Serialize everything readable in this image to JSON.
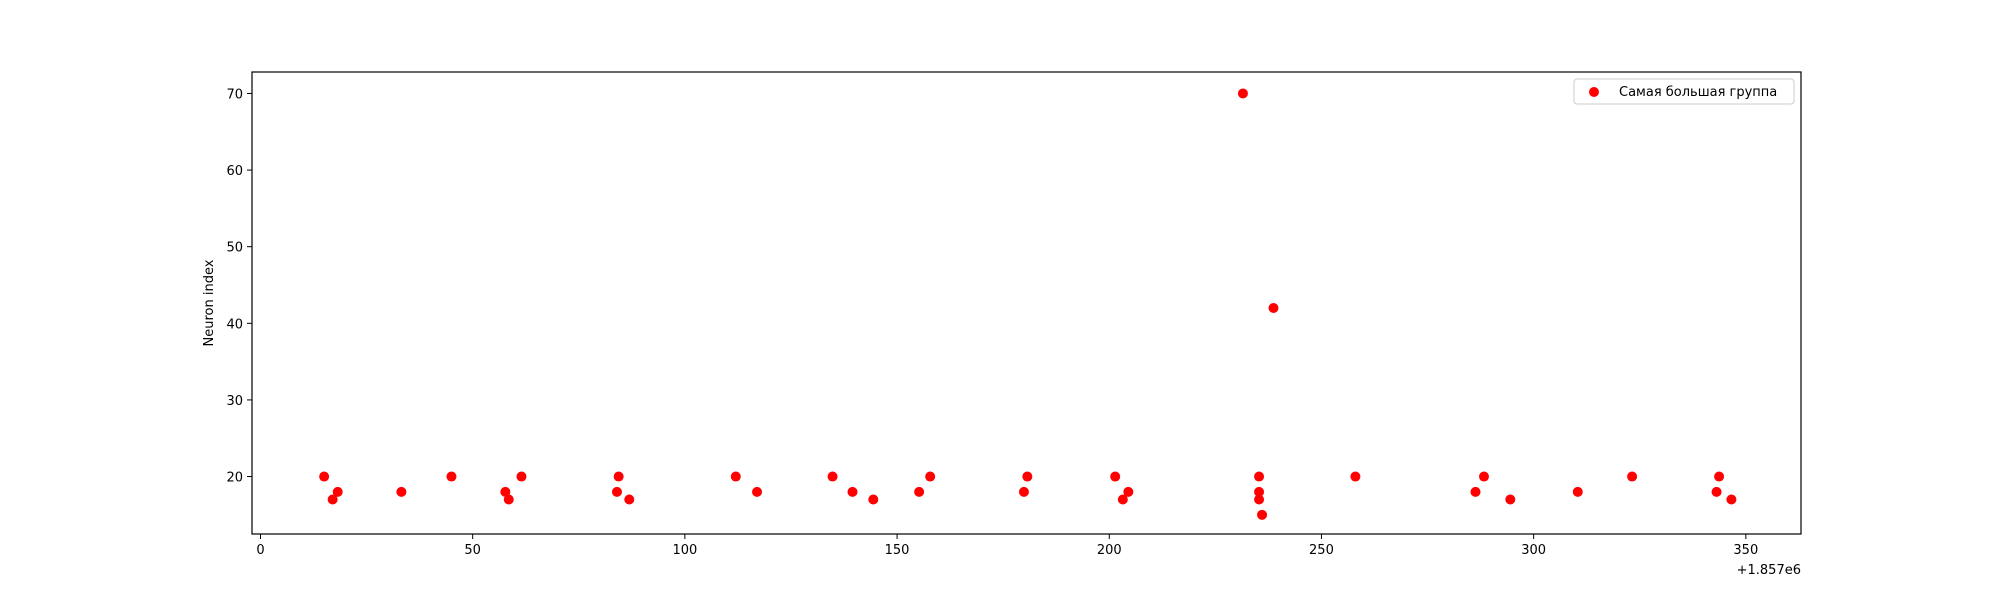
{
  "chart_data": {
    "type": "scatter",
    "title": "",
    "xlabel": "",
    "ylabel": "Neuron index",
    "x_offset_label": "+1.857e6",
    "xlim": [
      -2,
      363
    ],
    "ylim": [
      12.5,
      72.8
    ],
    "x_ticks": [
      0,
      50,
      100,
      150,
      200,
      250,
      300,
      350
    ],
    "x_tick_labels": [
      "0",
      "50",
      "100",
      "150",
      "200",
      "250",
      "300",
      "350"
    ],
    "y_ticks": [
      20,
      30,
      40,
      50,
      60,
      70
    ],
    "y_tick_labels": [
      "20",
      "30",
      "40",
      "50",
      "60",
      "70"
    ],
    "grid": false,
    "legend_position": "top-right",
    "series": [
      {
        "name": "Самая большая группа",
        "color": "#ff0000",
        "marker": "circle",
        "points": [
          {
            "x": 15.0,
            "y": 20
          },
          {
            "x": 17.0,
            "y": 17
          },
          {
            "x": 18.2,
            "y": 18
          },
          {
            "x": 33.2,
            "y": 18
          },
          {
            "x": 45.0,
            "y": 20
          },
          {
            "x": 57.7,
            "y": 18
          },
          {
            "x": 58.5,
            "y": 17
          },
          {
            "x": 61.5,
            "y": 20
          },
          {
            "x": 84.0,
            "y": 18
          },
          {
            "x": 84.4,
            "y": 20
          },
          {
            "x": 86.9,
            "y": 17
          },
          {
            "x": 112.0,
            "y": 20
          },
          {
            "x": 117.0,
            "y": 18
          },
          {
            "x": 134.8,
            "y": 20
          },
          {
            "x": 139.5,
            "y": 18
          },
          {
            "x": 144.4,
            "y": 17
          },
          {
            "x": 155.2,
            "y": 18
          },
          {
            "x": 157.8,
            "y": 20
          },
          {
            "x": 179.9,
            "y": 18
          },
          {
            "x": 180.7,
            "y": 20
          },
          {
            "x": 201.4,
            "y": 20
          },
          {
            "x": 203.2,
            "y": 17
          },
          {
            "x": 204.5,
            "y": 18
          },
          {
            "x": 231.5,
            "y": 70
          },
          {
            "x": 235.3,
            "y": 20
          },
          {
            "x": 235.3,
            "y": 18
          },
          {
            "x": 235.3,
            "y": 17
          },
          {
            "x": 236.0,
            "y": 15
          },
          {
            "x": 238.7,
            "y": 42
          },
          {
            "x": 258.0,
            "y": 20
          },
          {
            "x": 286.3,
            "y": 18
          },
          {
            "x": 288.3,
            "y": 20
          },
          {
            "x": 294.5,
            "y": 17
          },
          {
            "x": 310.4,
            "y": 18
          },
          {
            "x": 323.2,
            "y": 20
          },
          {
            "x": 343.1,
            "y": 18
          },
          {
            "x": 343.7,
            "y": 20
          },
          {
            "x": 346.6,
            "y": 17
          }
        ]
      }
    ]
  }
}
